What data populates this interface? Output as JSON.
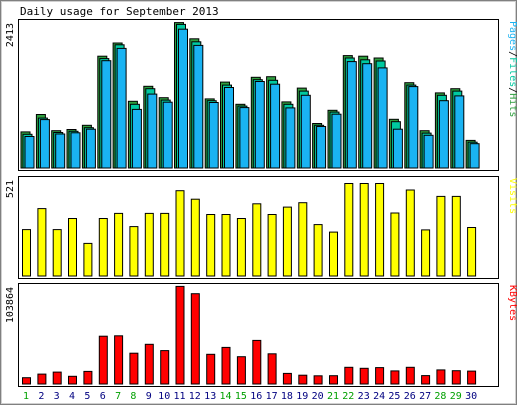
{
  "chart_data": {
    "type": "bar",
    "title": "Daily usage for September 2013",
    "categories": [
      "1",
      "2",
      "3",
      "4",
      "5",
      "6",
      "7",
      "8",
      "9",
      "10",
      "11",
      "12",
      "13",
      "14",
      "15",
      "16",
      "17",
      "18",
      "19",
      "20",
      "21",
      "22",
      "23",
      "24",
      "25",
      "26",
      "27",
      "28",
      "29",
      "30"
    ],
    "weekend_days": [
      "1",
      "7",
      "8",
      "14",
      "15",
      "21",
      "22",
      "28",
      "29"
    ],
    "panels": [
      {
        "id": "pages-files-hits",
        "ylabel": "Pages/Files/Hits",
        "ylabel_parts": [
          "Pages",
          "Files",
          "Hits"
        ],
        "ytick": "2413",
        "ylim": [
          0,
          2413
        ],
        "series": [
          {
            "name": "Hits",
            "color": "#2e9e3e",
            "values": [
              600,
              890,
              620,
              640,
              710,
              1860,
              2080,
              1110,
              1360,
              1170,
              2420,
              2150,
              1150,
              1430,
              1060,
              1510,
              1520,
              1100,
              1330,
              740,
              960,
              1870,
              1860,
              1830,
              810,
              1420,
              620,
              1250,
              1320,
              460
            ]
          },
          {
            "name": "Files",
            "color": "#00c9a0",
            "values": [
              560,
              830,
              590,
              610,
              670,
              1820,
              2050,
              1060,
              1320,
              1130,
              2390,
              2100,
              1120,
              1380,
              1030,
              1470,
              1460,
              1060,
              1280,
              710,
              930,
              1830,
              1800,
              1780,
              770,
              1380,
              580,
              1210,
              1280,
              430
            ]
          },
          {
            "name": "Pages",
            "color": "#1ab3f2",
            "values": [
              525,
              805,
              565,
              585,
              645,
              1785,
              1990,
              975,
              1230,
              1095,
              2310,
              2040,
              1090,
              1340,
              1005,
              1440,
              1395,
              1000,
              1210,
              690,
              895,
              1770,
              1735,
              1665,
              645,
              1355,
              545,
              1120,
              1200,
              405
            ]
          }
        ]
      },
      {
        "id": "visits",
        "ylabel": "Visits",
        "ytick": "521",
        "ylim": [
          0,
          521
        ],
        "series": [
          {
            "name": "Visits",
            "color": "#ffff00",
            "values": [
              252,
              366,
              252,
              312,
              177,
              312,
              340,
              268,
              340,
              340,
              463,
              417,
              334,
              334,
              312,
              392,
              334,
              374,
              398,
              279,
              238,
              502,
              502,
              502,
              342,
              467,
              250,
              432,
              432,
              263
            ]
          }
        ]
      },
      {
        "id": "kbytes",
        "ylabel": "KBytes",
        "ytick": "103864",
        "ylim": [
          0,
          103864
        ],
        "series": [
          {
            "name": "KBytes",
            "color": "#ff0000",
            "values": [
              6740,
              10600,
              12790,
              8200,
              13460,
              51170,
              51660,
              32940,
              42460,
              35770,
              104540,
              96700,
              31830,
              39190,
              29280,
              46730,
              32380,
              11350,
              9410,
              8810,
              8900,
              17880,
              16770,
              17560,
              14020,
              17880,
              9040,
              15130,
              14290,
              13760
            ]
          }
        ]
      }
    ],
    "legend": "vertical labels on right side of each panel"
  },
  "colors": {
    "title_text": "#000000",
    "axis_text": "#000000",
    "weekday_label": "#000080",
    "weekend_label": "#00a000",
    "panel_border": "#000000",
    "frame_bg": "#d0d0d0",
    "grid": "#bdbdbd"
  }
}
